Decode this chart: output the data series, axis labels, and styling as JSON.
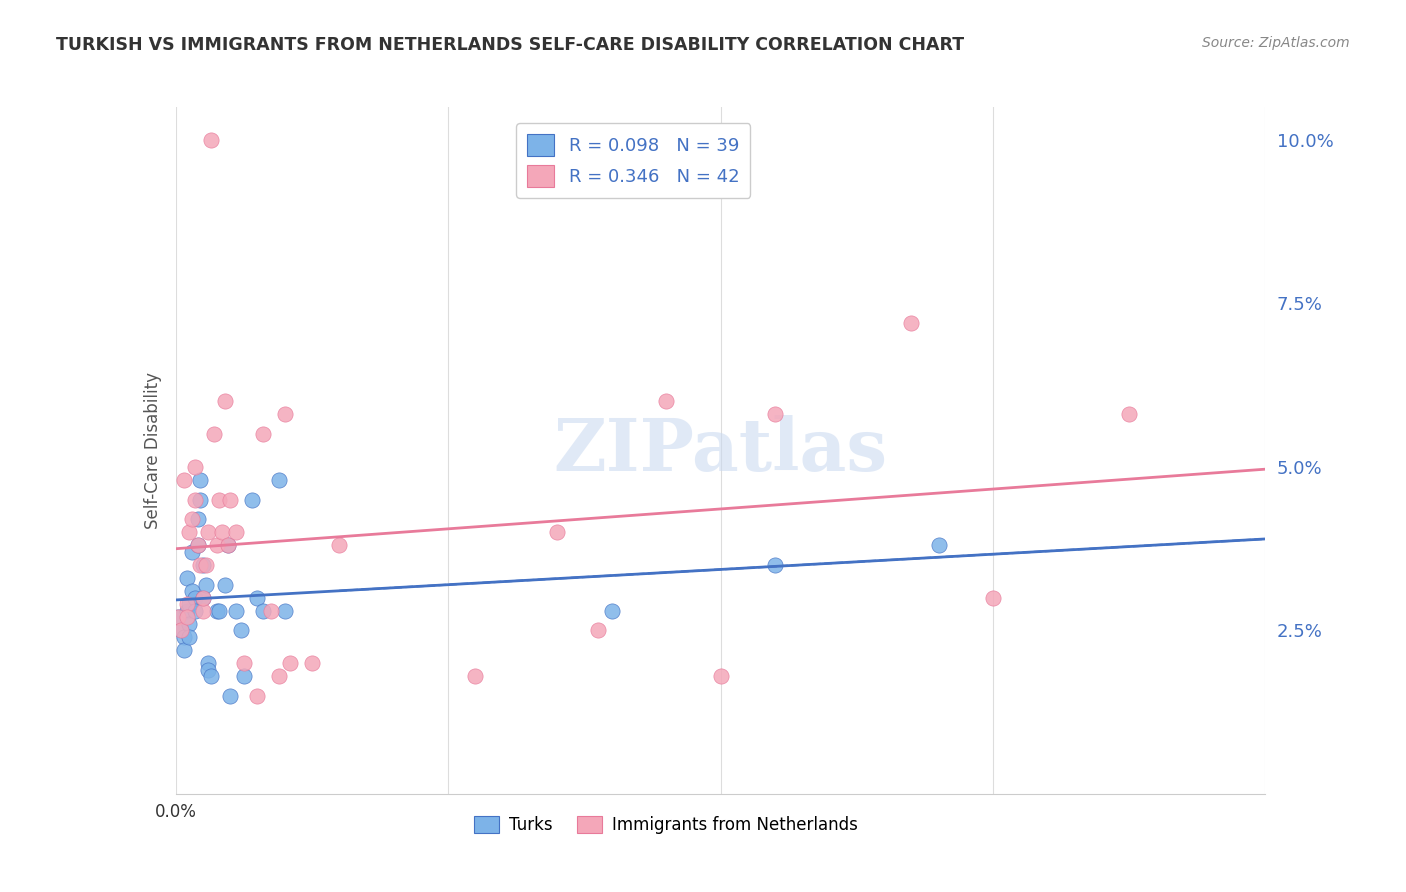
{
  "title": "TURKISH VS IMMIGRANTS FROM NETHERLANDS SELF-CARE DISABILITY CORRELATION CHART",
  "source": "Source: ZipAtlas.com",
  "ylabel": "Self-Care Disability",
  "legend_label1": "Turks",
  "legend_label2": "Immigrants from Netherlands",
  "r1": 0.098,
  "n1": 39,
  "r2": 0.346,
  "n2": 42,
  "watermark": "ZIPatlas",
  "color_turks": "#7db3e8",
  "color_netherlands": "#f4a7b9",
  "color_turks_line": "#4472c4",
  "color_netherlands_line": "#e87a9a",
  "color_legend_text": "#4472c4",
  "color_axis_right": "#4472c4",
  "xlim": [
    0.0,
    0.4
  ],
  "ylim": [
    0.0,
    0.105
  ],
  "yticks": [
    0.025,
    0.05,
    0.075,
    0.1
  ],
  "ytick_labels": [
    "2.5%",
    "5.0%",
    "7.5%",
    "10.0%"
  ],
  "turks_x": [
    0.001,
    0.002,
    0.003,
    0.003,
    0.004,
    0.004,
    0.005,
    0.005,
    0.005,
    0.006,
    0.006,
    0.007,
    0.007,
    0.008,
    0.008,
    0.009,
    0.009,
    0.01,
    0.01,
    0.011,
    0.012,
    0.012,
    0.013,
    0.015,
    0.016,
    0.018,
    0.019,
    0.02,
    0.022,
    0.024,
    0.025,
    0.028,
    0.03,
    0.032,
    0.038,
    0.04,
    0.16,
    0.22,
    0.28
  ],
  "turks_y": [
    0.027,
    0.025,
    0.024,
    0.022,
    0.028,
    0.033,
    0.029,
    0.026,
    0.024,
    0.031,
    0.037,
    0.03,
    0.028,
    0.042,
    0.038,
    0.045,
    0.048,
    0.035,
    0.03,
    0.032,
    0.02,
    0.019,
    0.018,
    0.028,
    0.028,
    0.032,
    0.038,
    0.015,
    0.028,
    0.025,
    0.018,
    0.045,
    0.03,
    0.028,
    0.048,
    0.028,
    0.028,
    0.035,
    0.038
  ],
  "netherlands_x": [
    0.001,
    0.002,
    0.003,
    0.004,
    0.004,
    0.005,
    0.006,
    0.007,
    0.007,
    0.008,
    0.009,
    0.01,
    0.01,
    0.011,
    0.012,
    0.013,
    0.014,
    0.015,
    0.016,
    0.017,
    0.018,
    0.019,
    0.02,
    0.022,
    0.025,
    0.03,
    0.032,
    0.035,
    0.038,
    0.04,
    0.042,
    0.05,
    0.06,
    0.11,
    0.14,
    0.155,
    0.18,
    0.2,
    0.22,
    0.27,
    0.3,
    0.35
  ],
  "netherlands_y": [
    0.027,
    0.025,
    0.048,
    0.029,
    0.027,
    0.04,
    0.042,
    0.045,
    0.05,
    0.038,
    0.035,
    0.028,
    0.03,
    0.035,
    0.04,
    0.1,
    0.055,
    0.038,
    0.045,
    0.04,
    0.06,
    0.038,
    0.045,
    0.04,
    0.02,
    0.015,
    0.055,
    0.028,
    0.018,
    0.058,
    0.02,
    0.02,
    0.038,
    0.018,
    0.04,
    0.025,
    0.06,
    0.018,
    0.058,
    0.072,
    0.03,
    0.058
  ]
}
